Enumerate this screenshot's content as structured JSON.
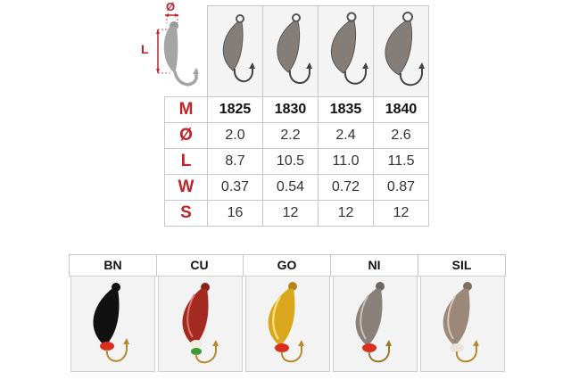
{
  "diagram": {
    "diameter_symbol": "Ø",
    "length_symbol": "L"
  },
  "spec_table": {
    "row_headers": [
      "M",
      "Ø",
      "L",
      "W",
      "S"
    ],
    "models": [
      "1825",
      "1830",
      "1835",
      "1840"
    ],
    "rows": [
      [
        "2.0",
        "2.2",
        "2.4",
        "2.6"
      ],
      [
        "8.7",
        "10.5",
        "11.0",
        "11.5"
      ],
      [
        "0.37",
        "0.54",
        "0.72",
        "0.87"
      ],
      [
        "16",
        "12",
        "12",
        "12"
      ]
    ]
  },
  "finishes": [
    {
      "label": "BN",
      "body_color": "#111111",
      "bead_color": "#d8301e"
    },
    {
      "label": "CU",
      "body_color": "#a52a22",
      "bead_color": "#f0ece0"
    },
    {
      "label": "GO",
      "body_color": "#d9a61c",
      "bead_color": "#d8301e"
    },
    {
      "label": "NI",
      "body_color": "#8a807a",
      "bead_color": "#d8301e"
    },
    {
      "label": "SIL",
      "body_color": "#9c8878",
      "bead_color": "#e9e4da"
    }
  ],
  "colors": {
    "header_red": "#c0232a",
    "hook_gray": "#555555",
    "grid": "#c8c8c8"
  }
}
